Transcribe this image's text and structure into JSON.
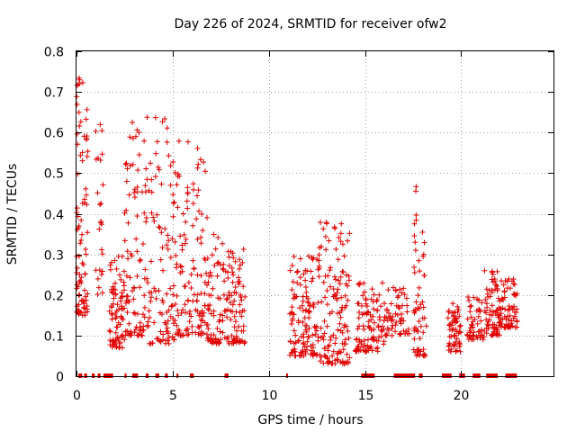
{
  "chart_data": {
    "type": "scatter",
    "title": "Day 226 of 2024, SRMTID for receiver ofw2",
    "xlabel": "GPS time / hours",
    "ylabel": "SRMTID / TECUs",
    "xlim": [
      0,
      24.8
    ],
    "ylim": [
      0,
      0.8
    ],
    "xticks": [
      0,
      5,
      10,
      15,
      20
    ],
    "yticks": [
      0,
      0.1,
      0.2,
      0.3,
      0.4,
      0.5,
      0.6,
      0.7,
      0.8
    ],
    "xtick_labels": [
      "0",
      "5",
      "10",
      "15",
      "20"
    ],
    "ytick_labels": [
      "0",
      "0.1",
      "0.2",
      "0.3",
      "0.4",
      "0.5",
      "0.6",
      "0.7",
      "0.8"
    ],
    "grid": true,
    "marker": "+",
    "color": "#e00000",
    "clusters": [
      {
        "x": [
          0.0,
          0.6
        ],
        "y": [
          0.15,
          0.74
        ],
        "n": 90
      },
      {
        "x": [
          1.0,
          1.4
        ],
        "y": [
          0.2,
          0.63
        ],
        "n": 25
      },
      {
        "x": [
          1.7,
          2.5
        ],
        "y": [
          0.07,
          0.3
        ],
        "n": 80
      },
      {
        "x": [
          2.5,
          3.5
        ],
        "y": [
          0.1,
          0.63
        ],
        "n": 80
      },
      {
        "x": [
          3.5,
          5.2
        ],
        "y": [
          0.08,
          0.64
        ],
        "n": 120
      },
      {
        "x": [
          5.2,
          6.8
        ],
        "y": [
          0.1,
          0.58
        ],
        "n": 120
      },
      {
        "x": [
          6.8,
          7.8
        ],
        "y": [
          0.08,
          0.35
        ],
        "n": 70
      },
      {
        "x": [
          7.8,
          8.8
        ],
        "y": [
          0.08,
          0.32
        ],
        "n": 80
      },
      {
        "x": [
          11.0,
          12.5
        ],
        "y": [
          0.05,
          0.3
        ],
        "n": 120
      },
      {
        "x": [
          12.5,
          14.2
        ],
        "y": [
          0.03,
          0.38
        ],
        "n": 140
      },
      {
        "x": [
          14.5,
          16.0
        ],
        "y": [
          0.06,
          0.23
        ],
        "n": 100
      },
      {
        "x": [
          16.0,
          17.3
        ],
        "y": [
          0.1,
          0.22
        ],
        "n": 60
      },
      {
        "x": [
          17.5,
          18.2
        ],
        "y": [
          0.05,
          0.47
        ],
        "n": 60
      },
      {
        "x": [
          19.3,
          20.0
        ],
        "y": [
          0.06,
          0.18
        ],
        "n": 60
      },
      {
        "x": [
          20.3,
          21.2
        ],
        "y": [
          0.09,
          0.2
        ],
        "n": 50
      },
      {
        "x": [
          21.2,
          22.0
        ],
        "y": [
          0.1,
          0.27
        ],
        "n": 70
      },
      {
        "x": [
          22.0,
          22.9
        ],
        "y": [
          0.12,
          0.24
        ],
        "n": 70
      }
    ],
    "zero_segments": [
      [
        0.1,
        0.3
      ],
      [
        0.4,
        0.55
      ],
      [
        0.8,
        0.95
      ],
      [
        1.1,
        1.25
      ],
      [
        1.4,
        1.9
      ],
      [
        2.5,
        2.6
      ],
      [
        2.9,
        3.2
      ],
      [
        3.6,
        3.75
      ],
      [
        4.1,
        4.3
      ],
      [
        4.6,
        4.75
      ],
      [
        5.2,
        5.3
      ],
      [
        5.9,
        6.1
      ],
      [
        7.7,
        7.9
      ],
      [
        10.9,
        11.0
      ],
      [
        14.8,
        15.5
      ],
      [
        16.5,
        17.6
      ],
      [
        17.8,
        18.0
      ],
      [
        19.0,
        19.5
      ],
      [
        19.9,
        20.2
      ],
      [
        20.6,
        21.0
      ],
      [
        21.3,
        21.9
      ],
      [
        22.3,
        22.9
      ]
    ]
  }
}
